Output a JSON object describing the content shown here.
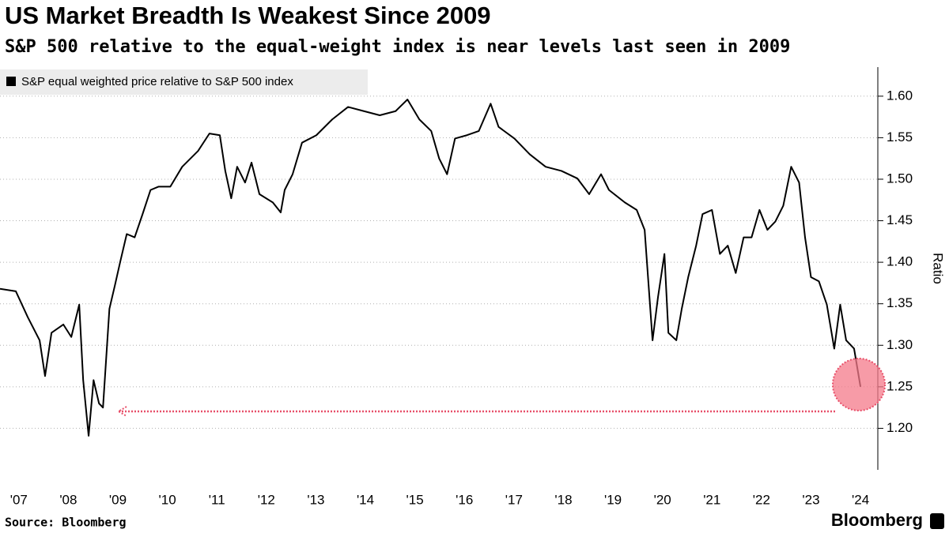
{
  "chart_data": {
    "type": "line",
    "title": "US Market Breadth Is Weakest Since 2009",
    "subtitle": "S&P 500 relative to the equal-weight index is near levels last seen in 2009",
    "y_label": "Ratio",
    "source": "Source: Bloomberg",
    "brand": "Bloomberg",
    "legend": "top-left",
    "x": [
      2007.12,
      2007.44,
      2007.68,
      2007.92,
      2008.03,
      2008.16,
      2008.4,
      2008.56,
      2008.72,
      2008.8,
      2008.91,
      2009.01,
      2009.12,
      2009.2,
      2009.33,
      2009.44,
      2009.55,
      2009.68,
      2009.84,
      2010.0,
      2010.16,
      2010.32,
      2010.56,
      2010.8,
      2011.12,
      2011.35,
      2011.56,
      2011.67,
      2011.79,
      2011.91,
      2012.07,
      2012.2,
      2012.36,
      2012.63,
      2012.79,
      2012.87,
      2013.03,
      2013.22,
      2013.51,
      2013.83,
      2014.15,
      2014.47,
      2014.79,
      2015.11,
      2015.35,
      2015.59,
      2015.83,
      2015.99,
      2016.15,
      2016.31,
      2016.55,
      2016.79,
      2017.03,
      2017.19,
      2017.51,
      2017.82,
      2018.14,
      2018.46,
      2018.78,
      2019.02,
      2019.26,
      2019.42,
      2019.74,
      2019.98,
      2020.14,
      2020.3,
      2020.41,
      2020.54,
      2020.62,
      2020.78,
      2020.89,
      2021.02,
      2021.18,
      2021.31,
      2021.5,
      2021.66,
      2021.82,
      2021.98,
      2022.14,
      2022.3,
      2022.46,
      2022.62,
      2022.78,
      2022.94,
      2023.1,
      2023.26,
      2023.38,
      2023.5,
      2023.66,
      2023.82,
      2023.97,
      2024.09,
      2024.21,
      2024.37,
      2024.5
    ],
    "series": [
      {
        "name": "S&P equal weighted price relative to S&P 500 index",
        "color": "#000000",
        "values": [
          1.368,
          1.365,
          1.334,
          1.306,
          1.263,
          1.315,
          1.325,
          1.31,
          1.349,
          1.258,
          1.191,
          1.258,
          1.23,
          1.225,
          1.344,
          1.372,
          1.401,
          1.434,
          1.43,
          1.458,
          1.487,
          1.491,
          1.491,
          1.515,
          1.534,
          1.555,
          1.553,
          1.51,
          1.477,
          1.515,
          1.496,
          1.52,
          1.482,
          1.472,
          1.46,
          1.487,
          1.506,
          1.544,
          1.553,
          1.572,
          1.587,
          1.582,
          1.577,
          1.582,
          1.596,
          1.572,
          1.558,
          1.525,
          1.506,
          1.549,
          1.553,
          1.558,
          1.591,
          1.563,
          1.549,
          1.53,
          1.515,
          1.51,
          1.501,
          1.482,
          1.506,
          1.487,
          1.472,
          1.463,
          1.439,
          1.306,
          1.358,
          1.41,
          1.315,
          1.306,
          1.344,
          1.382,
          1.42,
          1.458,
          1.463,
          1.41,
          1.42,
          1.387,
          1.43,
          1.43,
          1.463,
          1.439,
          1.449,
          1.468,
          1.515,
          1.496,
          1.43,
          1.382,
          1.377,
          1.349,
          1.296,
          1.349,
          1.306,
          1.296,
          1.25
        ]
      }
    ],
    "xlim": [
      2007.12,
      2024.85
    ],
    "xticks": [
      {
        "value": 2007.5,
        "label": "'07"
      },
      {
        "value": 2008.5,
        "label": "'08"
      },
      {
        "value": 2009.5,
        "label": "'09"
      },
      {
        "value": 2010.5,
        "label": "'10"
      },
      {
        "value": 2011.5,
        "label": "'11"
      },
      {
        "value": 2012.5,
        "label": "'12"
      },
      {
        "value": 2013.5,
        "label": "'13"
      },
      {
        "value": 2014.5,
        "label": "'14"
      },
      {
        "value": 2015.5,
        "label": "'15"
      },
      {
        "value": 2016.5,
        "label": "'16"
      },
      {
        "value": 2017.5,
        "label": "'17"
      },
      {
        "value": 2018.5,
        "label": "'18"
      },
      {
        "value": 2019.5,
        "label": "'19"
      },
      {
        "value": 2020.5,
        "label": "'20"
      },
      {
        "value": 2021.5,
        "label": "'21"
      },
      {
        "value": 2022.5,
        "label": "'22"
      },
      {
        "value": 2023.5,
        "label": "'23"
      },
      {
        "value": 2024.5,
        "label": "'24"
      }
    ],
    "ylim": [
      1.15,
      1.635
    ],
    "yticks": [
      {
        "value": 1.2,
        "label": "1.20"
      },
      1.25,
      {
        "value": 1.3,
        "label": "1.30"
      },
      1.35,
      {
        "value": 1.4,
        "label": "1.40"
      },
      1.45,
      {
        "value": 1.5,
        "label": "1.50"
      },
      1.55,
      {
        "value": 1.6,
        "label": "1.60"
      }
    ],
    "grid": true
  }
}
